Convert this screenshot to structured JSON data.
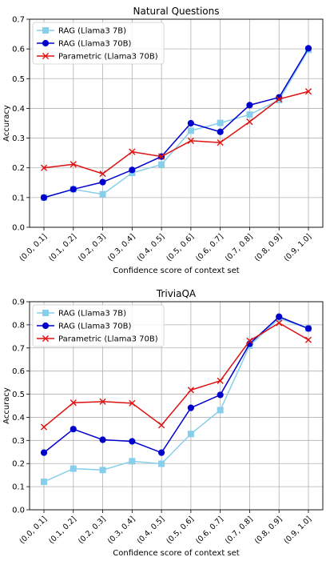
{
  "chart_data": [
    {
      "type": "line",
      "title": "Natural Questions",
      "xlabel": "Confidence score of context set",
      "ylabel": "Accuracy",
      "categories": [
        "(0.0, 0.1]",
        "(0.1, 0.2]",
        "(0.2, 0.3]",
        "(0.3, 0.4]",
        "(0.4, 0.5]",
        "(0.5, 0.6]",
        "(0.6, 0.7]",
        "(0.7, 0.8]",
        "(0.8, 0.9]",
        "(0.9, 1.0]"
      ],
      "ylim": [
        0,
        0.7
      ],
      "yticks": [
        "0.0",
        "0.1",
        "0.2",
        "0.3",
        "0.4",
        "0.5",
        "0.6",
        "0.7"
      ],
      "grid": true,
      "legend": "top-left",
      "series": [
        {
          "name": "RAG (Llama3 7B)",
          "color": "#87CEEB",
          "marker": "square",
          "values": [
            0.1,
            0.128,
            0.111,
            0.183,
            0.211,
            0.325,
            0.351,
            0.379,
            0.428,
            0.597
          ]
        },
        {
          "name": "RAG (Llama3 70B)",
          "color": "#0000CD",
          "marker": "circle",
          "values": [
            0.1,
            0.128,
            0.152,
            0.193,
            0.238,
            0.35,
            0.321,
            0.411,
            0.437,
            0.602
          ]
        },
        {
          "name": "Parametric (Llama3 70B)",
          "color": "#DD1111",
          "marker": "x",
          "values": [
            0.2,
            0.212,
            0.18,
            0.254,
            0.238,
            0.291,
            0.285,
            0.355,
            0.431,
            0.457
          ]
        }
      ]
    },
    {
      "type": "line",
      "title": "TriviaQA",
      "xlabel": "Confidence score of context set",
      "ylabel": "Accuracy",
      "categories": [
        "(0.0, 0.1]",
        "(0.1, 0.2]",
        "(0.2, 0.3]",
        "(0.3, 0.4]",
        "(0.4, 0.5]",
        "(0.5, 0.6]",
        "(0.6, 0.7]",
        "(0.7, 0.8]",
        "(0.8, 0.9]",
        "(0.9, 1.0]"
      ],
      "ylim": [
        0,
        0.9
      ],
      "yticks": [
        "0.0",
        "0.1",
        "0.2",
        "0.3",
        "0.4",
        "0.5",
        "0.6",
        "0.7",
        "0.8",
        "0.9"
      ],
      "grid": true,
      "legend": "top-left",
      "series": [
        {
          "name": "RAG (Llama3 7B)",
          "color": "#87CEEB",
          "marker": "square",
          "values": [
            0.121,
            0.178,
            0.172,
            0.21,
            0.199,
            0.328,
            0.431,
            0.71,
            0.828,
            0.784
          ]
        },
        {
          "name": "RAG (Llama3 70B)",
          "color": "#0000CD",
          "marker": "circle",
          "values": [
            0.247,
            0.349,
            0.303,
            0.296,
            0.247,
            0.441,
            0.497,
            0.718,
            0.835,
            0.784
          ]
        },
        {
          "name": "Parametric (Llama3 70B)",
          "color": "#DD1111",
          "marker": "x",
          "values": [
            0.358,
            0.463,
            0.468,
            0.461,
            0.366,
            0.518,
            0.558,
            0.731,
            0.808,
            0.735
          ]
        }
      ]
    }
  ]
}
